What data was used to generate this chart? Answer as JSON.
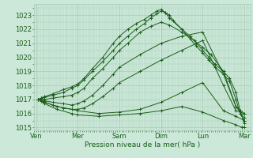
{
  "background_color": "#cce8d8",
  "grid_color": "#aaccb8",
  "line_color": "#1a5e1a",
  "marker_color": "#1a5e1a",
  "xlabel": "Pression niveau de la mer( hPa )",
  "xtick_labels": [
    "Ven",
    "Mer",
    "Sam",
    "Dim",
    "Lun",
    "Mar"
  ],
  "xtick_positions": [
    0,
    1,
    2,
    3,
    4,
    5
  ],
  "ylim": [
    1014.8,
    1023.8
  ],
  "yticks": [
    1015,
    1016,
    1017,
    1018,
    1019,
    1020,
    1021,
    1022,
    1023
  ],
  "series": [
    {
      "x": [
        0.05,
        0.12,
        0.2,
        0.4,
        0.65,
        0.85,
        1.0,
        1.15,
        1.35,
        1.6,
        1.85,
        2.0,
        2.2,
        2.4,
        2.6,
        2.75,
        2.9,
        3.0,
        3.1,
        3.2,
        3.3,
        3.5,
        3.7,
        3.85,
        4.0,
        4.15,
        4.3,
        4.5,
        4.65,
        4.8,
        4.9,
        5.0
      ],
      "y": [
        1017.0,
        1017.1,
        1017.2,
        1017.4,
        1017.7,
        1017.9,
        1018.1,
        1018.5,
        1019.2,
        1020.0,
        1021.0,
        1021.5,
        1022.0,
        1022.4,
        1022.7,
        1023.0,
        1023.3,
        1023.4,
        1023.2,
        1023.0,
        1022.6,
        1022.0,
        1021.5,
        1021.0,
        1020.5,
        1020.0,
        1019.5,
        1019.0,
        1018.5,
        1017.5,
        1016.2,
        1015.3
      ]
    },
    {
      "x": [
        0.05,
        0.12,
        0.2,
        0.4,
        0.65,
        0.85,
        1.0,
        1.15,
        1.35,
        1.6,
        1.85,
        2.0,
        2.2,
        2.4,
        2.6,
        2.75,
        2.9,
        3.0,
        3.1,
        3.2,
        3.5,
        3.7,
        3.85,
        4.0,
        4.15,
        4.3,
        4.5,
        4.65,
        4.8,
        4.9,
        5.0
      ],
      "y": [
        1017.0,
        1017.1,
        1017.15,
        1017.3,
        1017.5,
        1017.8,
        1018.0,
        1018.4,
        1019.0,
        1019.7,
        1020.5,
        1021.0,
        1021.5,
        1022.0,
        1022.4,
        1022.8,
        1023.1,
        1023.3,
        1023.2,
        1022.8,
        1022.0,
        1021.3,
        1020.8,
        1020.3,
        1019.8,
        1019.3,
        1018.8,
        1018.3,
        1017.0,
        1016.0,
        1015.5
      ]
    },
    {
      "x": [
        0.05,
        0.12,
        0.2,
        0.4,
        0.65,
        0.85,
        1.0,
        1.15,
        1.35,
        1.6,
        1.85,
        2.0,
        2.2,
        2.5,
        2.75,
        3.0,
        3.2,
        3.5,
        3.8,
        4.0,
        4.2,
        4.5,
        4.8,
        5.0
      ],
      "y": [
        1017.0,
        1017.05,
        1017.0,
        1017.1,
        1017.2,
        1017.3,
        1017.5,
        1017.8,
        1018.5,
        1019.2,
        1020.0,
        1020.5,
        1021.0,
        1021.8,
        1022.2,
        1022.5,
        1022.3,
        1021.8,
        1021.2,
        1020.7,
        1020.2,
        1019.0,
        1016.5,
        1015.7
      ]
    },
    {
      "x": [
        0.05,
        0.12,
        0.2,
        0.4,
        0.65,
        0.85,
        1.0,
        1.15,
        1.35,
        1.6,
        1.85,
        2.0,
        2.5,
        3.0,
        3.5,
        4.0,
        4.5,
        4.8,
        5.0
      ],
      "y": [
        1017.0,
        1016.95,
        1016.9,
        1016.8,
        1016.7,
        1016.6,
        1016.7,
        1016.9,
        1017.3,
        1018.0,
        1018.8,
        1019.3,
        1020.2,
        1021.0,
        1021.5,
        1021.8,
        1018.8,
        1016.5,
        1016.0
      ]
    },
    {
      "x": [
        0.05,
        0.12,
        0.2,
        0.4,
        0.65,
        0.85,
        1.0,
        1.15,
        1.35,
        1.6,
        1.85,
        2.0,
        2.5,
        3.0,
        3.5,
        4.0,
        4.5,
        4.8,
        5.0
      ],
      "y": [
        1017.0,
        1016.9,
        1016.8,
        1016.6,
        1016.4,
        1016.3,
        1016.3,
        1016.4,
        1016.7,
        1017.2,
        1017.8,
        1018.2,
        1019.0,
        1019.8,
        1020.5,
        1021.2,
        1018.0,
        1016.2,
        1016.0
      ]
    },
    {
      "x": [
        0.05,
        0.2,
        0.5,
        0.85,
        1.0,
        1.5,
        2.0,
        2.5,
        3.0,
        3.5,
        4.0,
        4.5,
        4.8,
        5.0
      ],
      "y": [
        1017.0,
        1016.8,
        1016.5,
        1016.3,
        1016.2,
        1016.0,
        1016.1,
        1016.3,
        1016.8,
        1017.5,
        1018.2,
        1016.2,
        1015.8,
        1015.5
      ]
    },
    {
      "x": [
        0.05,
        0.2,
        0.5,
        0.85,
        1.0,
        1.5,
        2.0,
        2.5,
        3.0,
        3.5,
        4.0,
        4.5,
        4.8,
        4.95,
        5.0
      ],
      "y": [
        1017.0,
        1016.7,
        1016.3,
        1016.0,
        1015.9,
        1015.8,
        1015.9,
        1016.0,
        1016.2,
        1016.5,
        1016.1,
        1015.5,
        1015.2,
        1015.0,
        1015.05
      ]
    }
  ]
}
